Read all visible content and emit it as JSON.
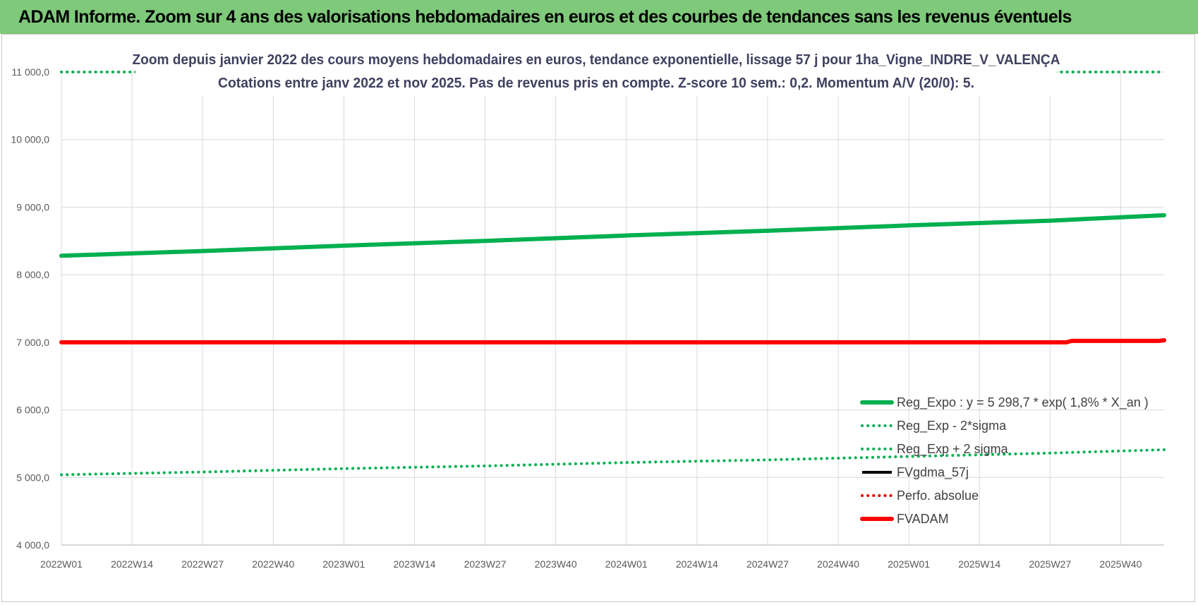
{
  "header": {
    "title": "ADAM Informe. Zoom sur 4 ans des valorisations hebdomadaires en euros et des courbes de tendances sans les revenus éventuels",
    "background": "#7ec97a"
  },
  "chart_data": {
    "type": "line",
    "title": "Zoom depuis janvier 2022 des cours moyens hebdomadaires en euros, tendance exponentielle, lissage 57 j pour 1ha_Vigne_INDRE_V_VALENÇA",
    "subtitle": "Cotations entre janv 2022 et nov 2025. Pas de revenus pris en compte. Z-score 10 sem.: 0,2. Momentum A/V (20/0): 5.",
    "xlabel": "",
    "ylabel": "",
    "ylim": [
      4000,
      11000
    ],
    "yticks": [
      "4 000,0",
      "5 000,0",
      "6 000,0",
      "7 000,0",
      "8 000,0",
      "9 000,0",
      "10 000,0",
      "11 000,0"
    ],
    "x_start": "2022W01",
    "x_end": "2025W48",
    "xticks": [
      "2022W01",
      "2022W14",
      "2022W27",
      "2022W40",
      "2023W01",
      "2023W14",
      "2023W27",
      "2023W40",
      "2024W01",
      "2024W14",
      "2024W27",
      "2024W40",
      "2025W01",
      "2025W14",
      "2025W27",
      "2025W40"
    ],
    "grid": true,
    "legend_position": "bottom-right",
    "series": [
      {
        "name": "Reg_Expo : y = 5 298,7 * exp( 1,8% *  X_an )",
        "style": "solid-thick",
        "color": "#00b050",
        "points": [
          [
            "2022W01",
            8280
          ],
          [
            "2022W27",
            8350
          ],
          [
            "2023W01",
            8430
          ],
          [
            "2023W27",
            8500
          ],
          [
            "2024W01",
            8580
          ],
          [
            "2024W27",
            8650
          ],
          [
            "2025W01",
            8730
          ],
          [
            "2025W27",
            8800
          ],
          [
            "2025W48",
            8880
          ]
        ]
      },
      {
        "name": "Reg_Exp - 2*sigma",
        "style": "dotted",
        "color": "#00b050",
        "points": [
          [
            "2022W01",
            5040
          ],
          [
            "2022W27",
            5080
          ],
          [
            "2023W01",
            5130
          ],
          [
            "2023W27",
            5170
          ],
          [
            "2024W01",
            5220
          ],
          [
            "2024W27",
            5260
          ],
          [
            "2025W01",
            5310
          ],
          [
            "2025W27",
            5360
          ],
          [
            "2025W48",
            5410
          ]
        ]
      },
      {
        "name": "Reg_Exp + 2 sigma",
        "style": "dotted",
        "color": "#00b050",
        "points": [
          [
            "2022W01",
            11000
          ],
          [
            "2025W48",
            11000
          ]
        ]
      },
      {
        "name": "FVgdma_57j",
        "style": "solid",
        "color": "#000000",
        "points": []
      },
      {
        "name": "Perfo. absolue",
        "style": "dotted",
        "color": "#e00000",
        "points": []
      },
      {
        "name": "FVADAM",
        "style": "solid-thick",
        "color": "#ff0000",
        "points": [
          [
            "2022W01",
            7000
          ],
          [
            "2025W30",
            7000
          ],
          [
            "2025W31",
            7020
          ],
          [
            "2025W47",
            7020
          ],
          [
            "2025W48",
            7030
          ]
        ]
      }
    ]
  }
}
